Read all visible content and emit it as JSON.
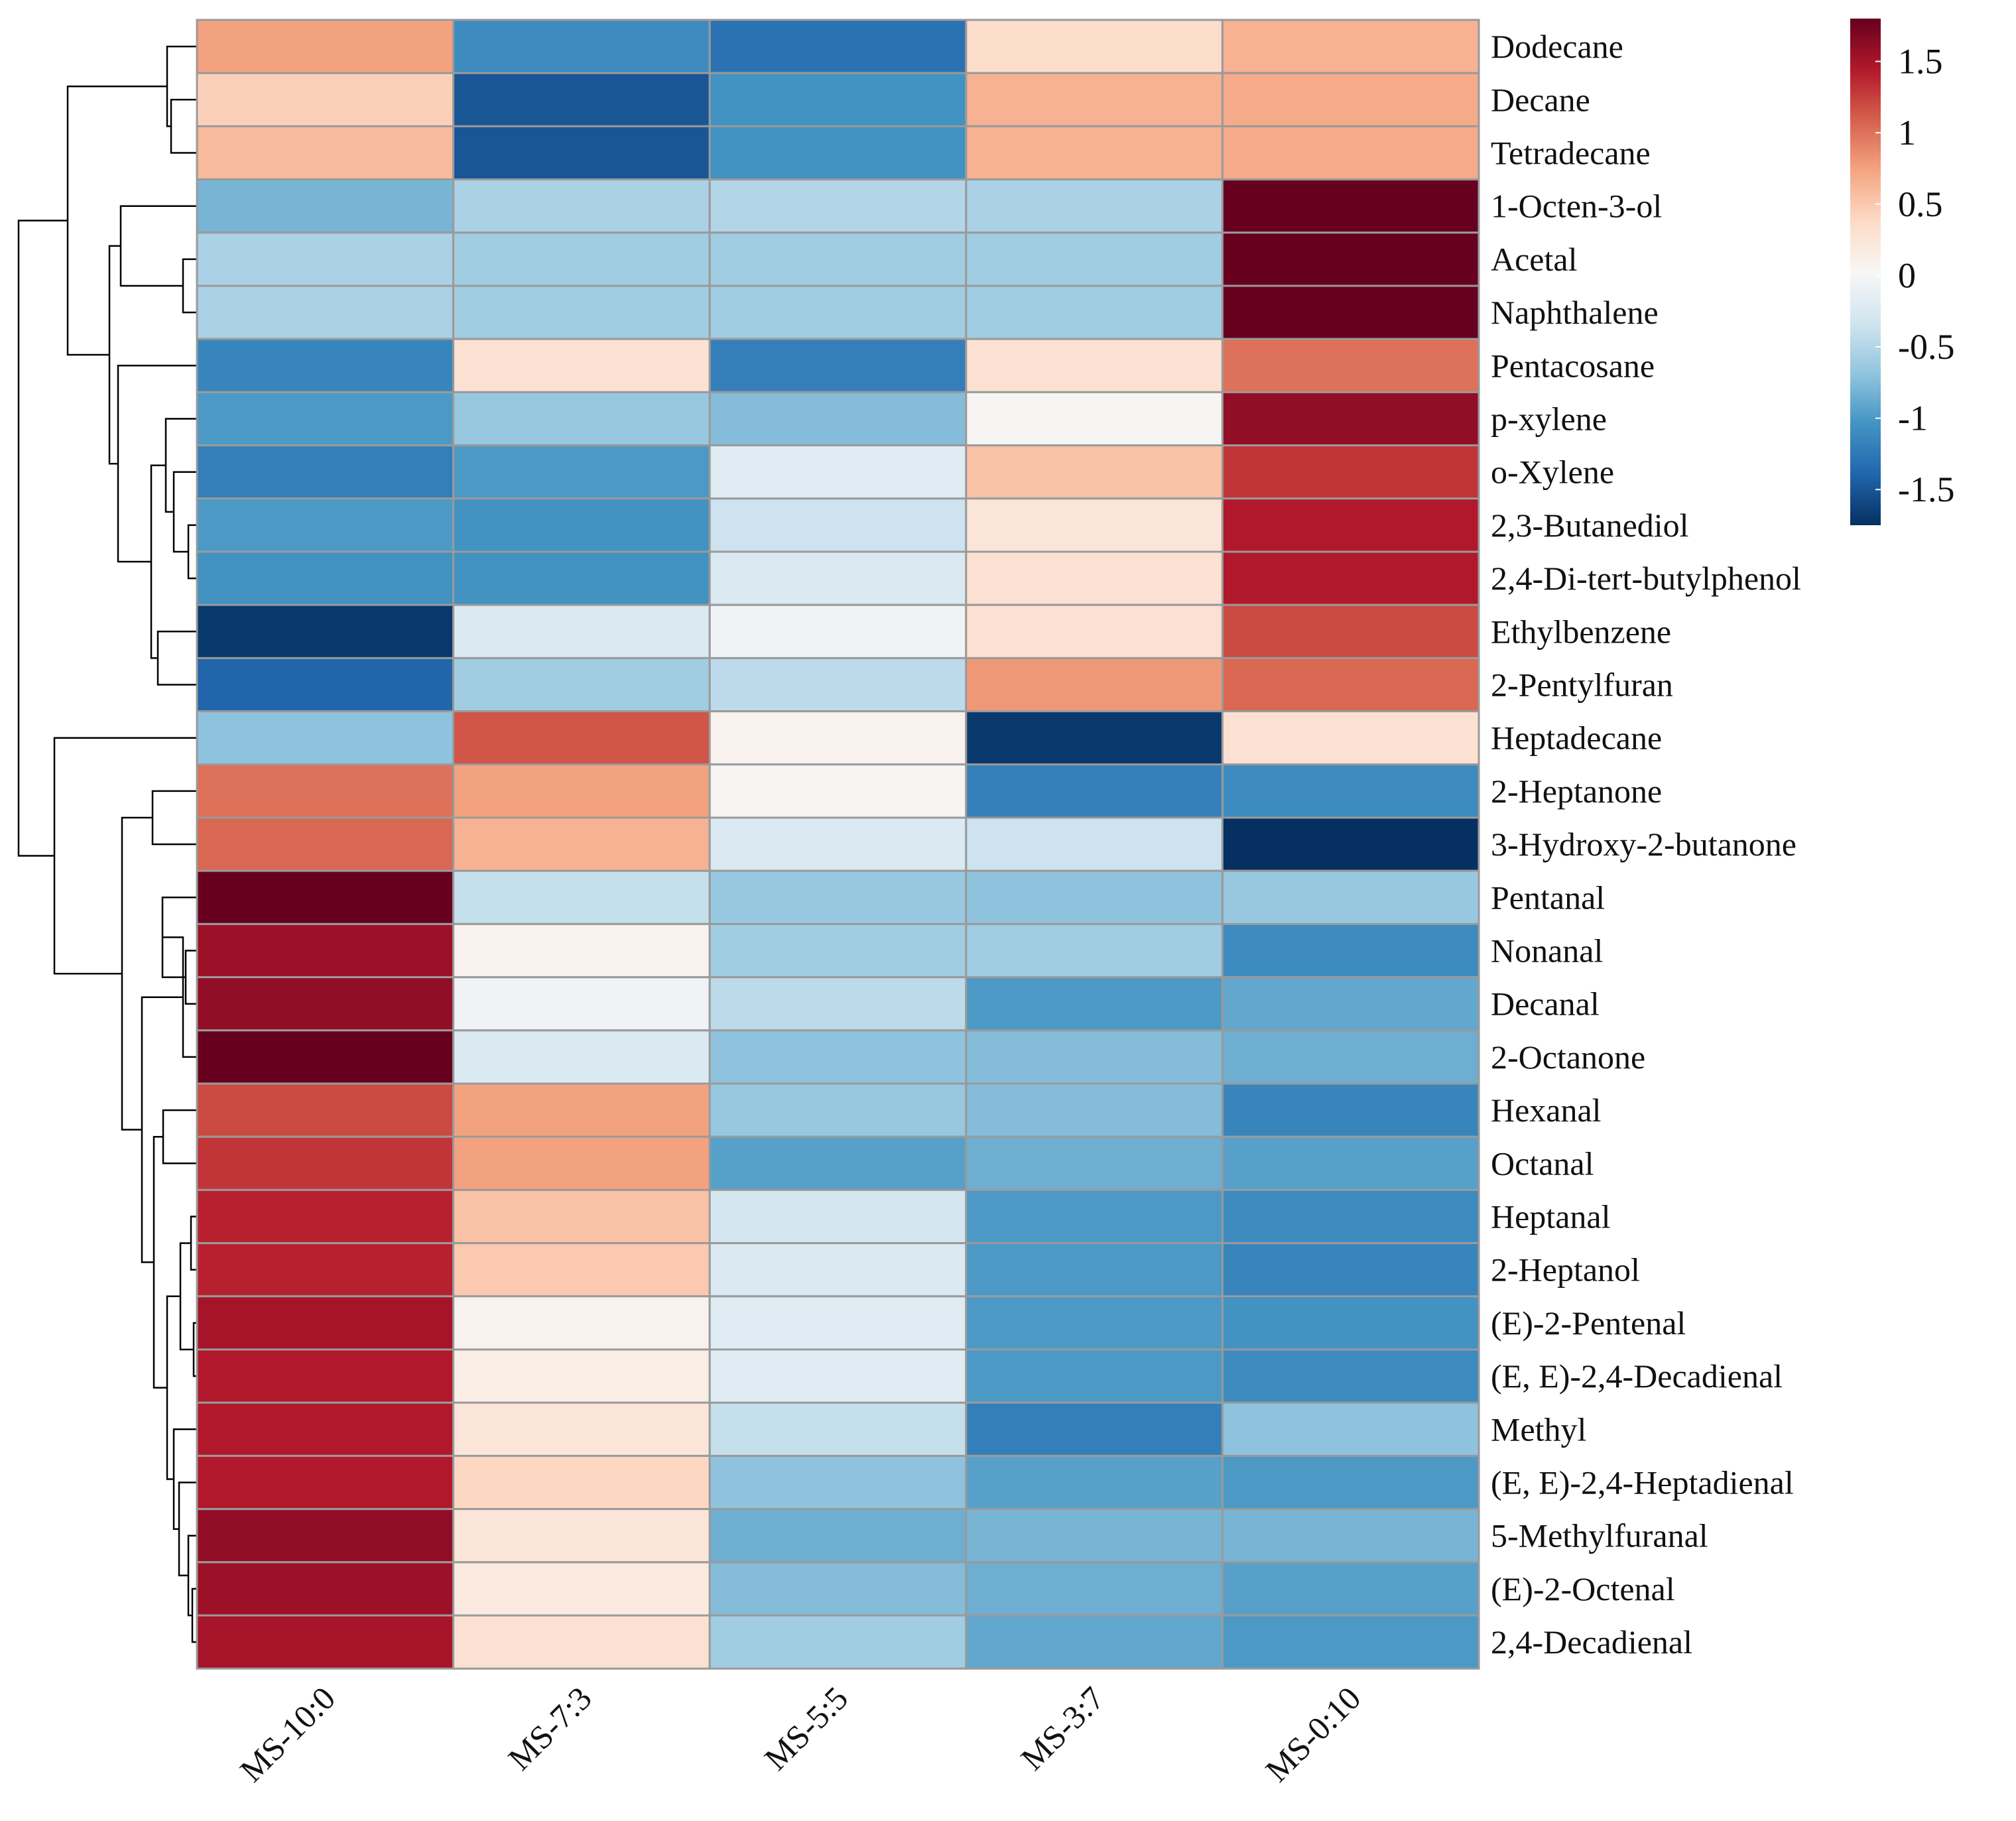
{
  "chart_data": {
    "type": "heatmap",
    "title": "",
    "columns": [
      "MS-10:0",
      "MS-7:3",
      "MS-5:5",
      "MS-3:7",
      "MS-0:10"
    ],
    "rows": [
      "Dodecane",
      "Decane",
      "Tetradecane",
      "1-Octen-3-ol",
      "Acetal",
      "Naphthalene",
      "Pentacosane",
      "p-xylene",
      "o-Xylene",
      "2,3-Butanediol",
      "2,4-Di-tert-butylphenol",
      "Ethylbenzene",
      "2-Pentylfuran",
      "Heptadecane",
      "2-Heptanone",
      "3-Hydroxy-2-butanone",
      "Pentanal",
      "Nonanal",
      "Decanal",
      "2-Octanone",
      "Hexanal",
      "Octanal",
      "Heptanal",
      "2-Heptanol",
      "(E)-2-Pentenal",
      "(E, E)-2,4-Decadienal",
      "Methyl",
      "(E, E)-2,4-Heptadienal",
      "5-Methylfuranal",
      "(E)-2-Octenal",
      "2,4-Decadienal"
    ],
    "values": [
      [
        0.75,
        -1.1,
        -1.3,
        0.35,
        0.65
      ],
      [
        0.45,
        -1.5,
        -1.05,
        0.65,
        0.7
      ],
      [
        0.6,
        -1.5,
        -1.05,
        0.65,
        0.7
      ],
      [
        -0.8,
        -0.55,
        -0.5,
        -0.55,
        1.8
      ],
      [
        -0.55,
        -0.6,
        -0.6,
        -0.6,
        1.8
      ],
      [
        -0.55,
        -0.6,
        -0.6,
        -0.6,
        1.8
      ],
      [
        -1.15,
        0.3,
        -1.2,
        0.3,
        1.0
      ],
      [
        -1.0,
        -0.65,
        -0.75,
        0.05,
        1.6
      ],
      [
        -1.2,
        -1.0,
        -0.2,
        0.55,
        1.3
      ],
      [
        -1.0,
        -1.05,
        -0.35,
        0.25,
        1.45
      ],
      [
        -1.05,
        -1.05,
        -0.25,
        0.3,
        1.45
      ],
      [
        -1.7,
        -0.25,
        -0.05,
        0.3,
        1.2
      ],
      [
        -1.4,
        -0.6,
        -0.45,
        0.8,
        1.05
      ],
      [
        -0.7,
        1.15,
        0.1,
        -1.7,
        0.3
      ],
      [
        1.0,
        0.75,
        0.05,
        -1.2,
        -1.1
      ],
      [
        1.05,
        0.65,
        -0.25,
        -0.35,
        -1.75
      ],
      [
        1.8,
        -0.4,
        -0.65,
        -0.7,
        -0.65
      ],
      [
        1.55,
        0.1,
        -0.6,
        -0.6,
        -1.1
      ],
      [
        1.6,
        -0.05,
        -0.45,
        -1.0,
        -0.9
      ],
      [
        1.8,
        -0.25,
        -0.7,
        -0.75,
        -0.85
      ],
      [
        1.2,
        0.75,
        -0.65,
        -0.75,
        -1.15
      ],
      [
        1.3,
        0.75,
        -0.95,
        -0.85,
        -0.95
      ],
      [
        1.4,
        0.55,
        -0.3,
        -1.0,
        -1.1
      ],
      [
        1.4,
        0.5,
        -0.25,
        -1.0,
        -1.15
      ],
      [
        1.5,
        0.1,
        -0.2,
        -1.0,
        -1.05
      ],
      [
        1.45,
        0.15,
        -0.2,
        -1.0,
        -1.1
      ],
      [
        1.45,
        0.25,
        -0.4,
        -1.2,
        -0.7
      ],
      [
        1.45,
        0.4,
        -0.7,
        -0.95,
        -1.0
      ],
      [
        1.6,
        0.25,
        -0.85,
        -0.8,
        -0.8
      ],
      [
        1.55,
        0.2,
        -0.75,
        -0.85,
        -0.95
      ],
      [
        1.5,
        0.3,
        -0.6,
        -0.9,
        -1.0
      ]
    ],
    "colorbar": {
      "ticks": [
        1.5,
        1,
        0.5,
        0,
        -0.5,
        -1,
        -1.5
      ],
      "tick_labels": [
        "1.5",
        "1",
        "0.5",
        "0",
        "-0.5",
        "-1",
        "-1.5"
      ],
      "range": [
        -1.75,
        1.8
      ]
    },
    "colormap": [
      "#053061",
      "#2166ac",
      "#4393c3",
      "#92c5de",
      "#d1e5f0",
      "#f7f7f7",
      "#fddbc7",
      "#f4a582",
      "#d6604d",
      "#b2182b",
      "#67001f"
    ],
    "row_dendrogram": true,
    "xlabel": "",
    "ylabel": ""
  }
}
